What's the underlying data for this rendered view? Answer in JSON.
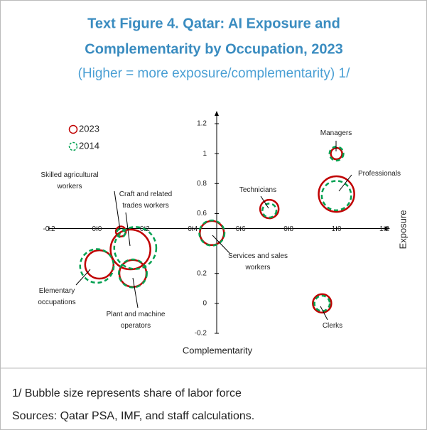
{
  "chart_data": {
    "type": "bubble",
    "title": [
      "Text Figure 4. Qatar: AI Exposure and",
      "Complementarity by Occupation, 2023"
    ],
    "subtitle": "(Higher = more exposure/complementarity) 1/",
    "x_label": "Complementarity",
    "y_label": "Exposure",
    "categories": [
      "Managers",
      "Professionals",
      "Technicians",
      "Clerks",
      "Services and sales workers",
      "Skilled agricultural workers",
      "Craft and related trades workers",
      "Plant and machine operators",
      "Elementary occupations"
    ],
    "series": [
      {
        "name": "2023",
        "color": "#c00000",
        "dashed": false,
        "x": [
          1.0,
          1.0,
          0.72,
          0.94,
          0.48,
          0.1,
          0.14,
          0.15,
          0.01
        ],
        "values": [
          1.0,
          0.73,
          0.63,
          0.0,
          0.47,
          0.48,
          0.36,
          0.2,
          0.26
        ],
        "sizes": [
          2.2,
          21.5,
          5.8,
          5.8,
          9.9,
          1.7,
          26.9,
          12.4,
          13.7
        ]
      },
      {
        "name": "2014",
        "color": "#00a050",
        "dashed": true,
        "x": [
          1.0,
          1.0,
          0.72,
          0.94,
          0.48,
          0.1,
          0.16,
          0.15,
          0.0
        ],
        "values": [
          1.0,
          0.72,
          0.62,
          0.0,
          0.47,
          0.47,
          0.37,
          0.2,
          0.25
        ],
        "sizes": [
          3.3,
          14.7,
          3.3,
          4.0,
          10.8,
          1.2,
          30.0,
          13.3,
          19.2
        ]
      }
    ],
    "xlim": [
      -0.2,
      1.2
    ],
    "xticks": [
      -0.2,
      {
        "value": 0,
        "label": "0.0"
      },
      0.2,
      0.4,
      0.6,
      0.8,
      {
        "value": 1,
        "label": "1.0"
      },
      1.2
    ],
    "ylim": [
      -0.2,
      1.2
    ],
    "yticks": [
      -0.2,
      0,
      0.2,
      0.6,
      0.8,
      1,
      1.2
    ],
    "axes_cross": [
      0.5,
      0.5
    ],
    "legend": "upper left",
    "notes": [
      "1/ Bubble size represents share of labor force",
      "Sources: Qatar PSA, IMF, and staff calculations."
    ]
  }
}
